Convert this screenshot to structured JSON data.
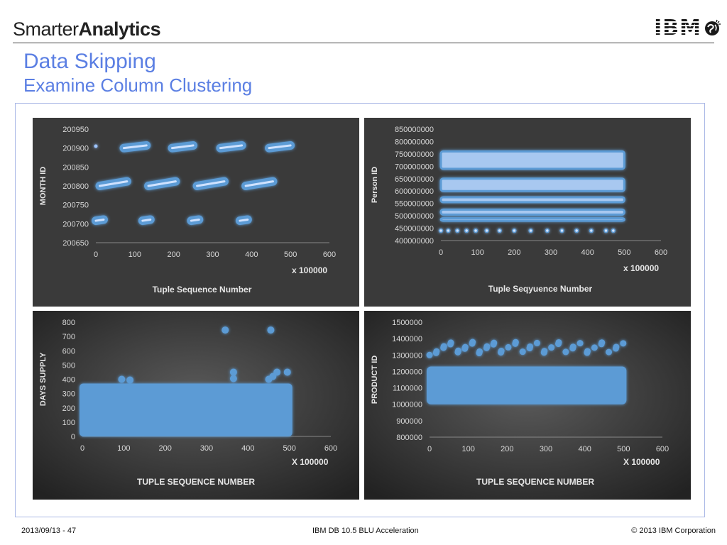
{
  "header": {
    "brand_light": "Smarter",
    "brand_bold": "Analytics",
    "ibm_logo": "IBM",
    "globe_icon": "globe-icon"
  },
  "slide": {
    "title": "Data Skipping",
    "subtitle": "Examine Column Clustering"
  },
  "footer": {
    "left": "2013/09/13 - 47",
    "center": "IBM DB 10.5 BLU Acceleration",
    "right": "© 2013 IBM Corporation"
  },
  "colors": {
    "accent": "#5b7fe3",
    "point": "#5b9bd5",
    "panel_dark": "#3a3a3a"
  },
  "chart_data": [
    {
      "type": "scatter",
      "ylabel": "MONTH ID",
      "xlabel": "Tuple Sequence Number",
      "x_unit_label": "x 100000",
      "xlim": [
        0,
        600
      ],
      "ylim": [
        200650,
        200950
      ],
      "xticks": [
        0,
        100,
        200,
        300,
        400,
        500,
        600
      ],
      "yticks": [
        200650,
        200700,
        200750,
        200800,
        200850,
        200900,
        200950
      ],
      "segments": [
        {
          "x0": 0,
          "x1": 0,
          "y0": 200905,
          "y1": 200905
        },
        {
          "x0": 72,
          "x1": 130,
          "y0": 200900,
          "y1": 200907
        },
        {
          "x0": 196,
          "x1": 250,
          "y0": 200900,
          "y1": 200907
        },
        {
          "x0": 320,
          "x1": 375,
          "y0": 200900,
          "y1": 200907
        },
        {
          "x0": 445,
          "x1": 500,
          "y0": 200900,
          "y1": 200907
        },
        {
          "x0": 10,
          "x1": 80,
          "y0": 200800,
          "y1": 200812
        },
        {
          "x0": 135,
          "x1": 205,
          "y0": 200800,
          "y1": 200812
        },
        {
          "x0": 260,
          "x1": 330,
          "y0": 200800,
          "y1": 200812
        },
        {
          "x0": 385,
          "x1": 455,
          "y0": 200800,
          "y1": 200812
        },
        {
          "x0": 0,
          "x1": 20,
          "y0": 200708,
          "y1": 200711
        },
        {
          "x0": 120,
          "x1": 140,
          "y0": 200708,
          "y1": 200711
        },
        {
          "x0": 245,
          "x1": 265,
          "y0": 200708,
          "y1": 200711
        },
        {
          "x0": 370,
          "x1": 390,
          "y0": 200708,
          "y1": 200711
        }
      ]
    },
    {
      "type": "scatter",
      "ylabel": "Person ID",
      "xlabel": "Tuple Seqyuence Number",
      "x_unit_label": "x 100000",
      "xlim": [
        0,
        600
      ],
      "ylim": [
        400000000,
        850000000
      ],
      "xticks": [
        0,
        100,
        200,
        300,
        400,
        500,
        600
      ],
      "yticks": [
        400000000,
        450000000,
        500000000,
        550000000,
        600000000,
        650000000,
        700000000,
        750000000,
        800000000,
        850000000
      ],
      "bands": [
        {
          "x0": 0,
          "x1": 500,
          "y0": 690000000,
          "y1": 760000000
        },
        {
          "x0": 0,
          "x1": 500,
          "y0": 600000000,
          "y1": 650000000
        },
        {
          "x0": 0,
          "x1": 500,
          "y0": 555000000,
          "y1": 575000000
        },
        {
          "x0": 0,
          "x1": 500,
          "y0": 505000000,
          "y1": 525000000
        },
        {
          "x0": 0,
          "x1": 500,
          "y0": 480000000,
          "y1": 490000000
        }
      ],
      "points_y": 440000000,
      "points_x": [
        0,
        20,
        45,
        70,
        95,
        125,
        160,
        200,
        245,
        290,
        330,
        370,
        410,
        450,
        470
      ]
    },
    {
      "type": "scatter",
      "ylabel": "DAYS SUPPLY",
      "xlabel": "TUPLE SEQUENCE NUMBER",
      "x_unit_label": "X 100000",
      "xlim": [
        0,
        600
      ],
      "ylim": [
        0,
        800
      ],
      "xticks": [
        0,
        100,
        200,
        300,
        400,
        500,
        600
      ],
      "yticks": [
        0,
        100,
        200,
        300,
        400,
        500,
        600,
        700,
        800
      ],
      "band": {
        "x0": 0,
        "x1": 500,
        "y0": 0,
        "y1": 370
      },
      "outliers": [
        {
          "x": 345,
          "y": 745
        },
        {
          "x": 455,
          "y": 745
        },
        {
          "x": 365,
          "y": 450
        },
        {
          "x": 470,
          "y": 450
        },
        {
          "x": 495,
          "y": 450
        },
        {
          "x": 95,
          "y": 400
        },
        {
          "x": 115,
          "y": 395
        },
        {
          "x": 460,
          "y": 420
        },
        {
          "x": 365,
          "y": 405
        },
        {
          "x": 450,
          "y": 400
        }
      ]
    },
    {
      "type": "scatter",
      "ylabel": "PRODUCT ID",
      "xlabel": "TUPLE SEQUENCE NUMBER",
      "x_unit_label": "X 100000",
      "xlim": [
        0,
        600
      ],
      "ylim": [
        800000,
        1500000
      ],
      "xticks": [
        0,
        100,
        200,
        300,
        400,
        500,
        600
      ],
      "yticks": [
        800000,
        900000,
        1000000,
        1100000,
        1200000,
        1300000,
        1400000,
        1500000
      ],
      "band": {
        "x0": 0,
        "x1": 500,
        "y0": 1000000,
        "y1": 1230000
      },
      "outliers_y_range": [
        1300000,
        1380000
      ]
    }
  ]
}
